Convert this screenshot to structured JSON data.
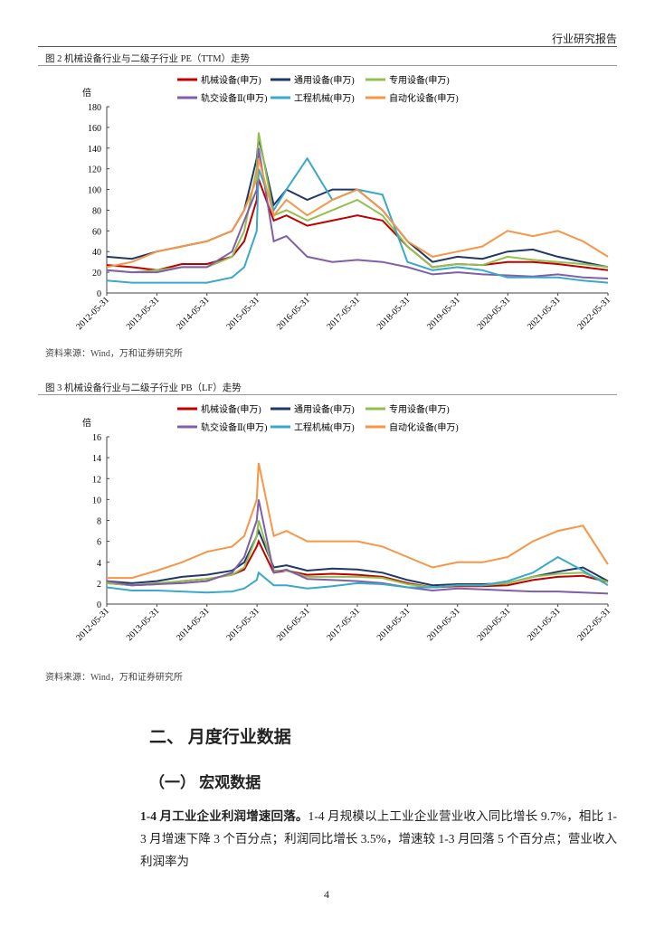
{
  "header": {
    "title": "行业研究报告"
  },
  "figures": [
    {
      "caption": "图 2  机械设备行业与二级子行业 PE（TTM）走势",
      "source": "资料来源：Wind，万和证券研究所"
    },
    {
      "caption": "图 3  机械设备行业与二级子行业 PB（LF）走势",
      "source": "资料来源：Wind，万和证券研究所"
    }
  ],
  "chart_data": [
    {
      "type": "line",
      "y_label": "倍",
      "x": [
        "2012-05-31",
        "2012-11-30",
        "2013-05-31",
        "2013-11-30",
        "2014-05-31",
        "2014-11-30",
        "2015-02-27",
        "2015-05-29",
        "2015-06-12",
        "2015-09-30",
        "2015-12-31",
        "2016-05-31",
        "2016-11-30",
        "2017-05-31",
        "2017-11-30",
        "2018-05-31",
        "2018-11-30",
        "2019-05-31",
        "2019-11-29",
        "2020-05-29",
        "2020-11-30",
        "2021-05-31",
        "2021-11-30",
        "2022-05-31"
      ],
      "xlim": [
        "2012-05-31",
        "2022-05-31"
      ],
      "xticks": [
        "2012-05-31",
        "2013-05-31",
        "2014-05-31",
        "2015-05-31",
        "2016-05-31",
        "2017-05-31",
        "2018-05-31",
        "2019-05-31",
        "2020-05-31",
        "2021-05-31",
        "2022-05-31"
      ],
      "ylim": [
        0,
        180
      ],
      "yticks": [
        0,
        20,
        40,
        60,
        80,
        100,
        120,
        140,
        160,
        180
      ],
      "series": [
        {
          "name": "机械设备(申万)",
          "color": "#c00000",
          "values": [
            27,
            25,
            22,
            28,
            28,
            35,
            50,
            90,
            110,
            70,
            75,
            65,
            70,
            75,
            70,
            45,
            25,
            28,
            27,
            30,
            30,
            28,
            25,
            22
          ]
        },
        {
          "name": "通用设备(申万)",
          "color": "#203864",
          "values": [
            35,
            33,
            40,
            45,
            50,
            60,
            80,
            130,
            150,
            85,
            100,
            90,
            100,
            100,
            80,
            50,
            30,
            35,
            33,
            40,
            42,
            35,
            30,
            25
          ]
        },
        {
          "name": "专用设备(申万)",
          "color": "#92c050",
          "values": [
            22,
            20,
            22,
            25,
            25,
            35,
            60,
            120,
            155,
            75,
            80,
            70,
            80,
            90,
            75,
            45,
            25,
            28,
            27,
            35,
            32,
            30,
            28,
            25
          ]
        },
        {
          "name": "轨交设备Ⅱ(申万)",
          "color": "#7f5fa8",
          "values": [
            22,
            20,
            20,
            25,
            25,
            40,
            70,
            100,
            140,
            50,
            55,
            35,
            30,
            32,
            30,
            25,
            18,
            20,
            18,
            17,
            16,
            18,
            15,
            14
          ]
        },
        {
          "name": "工程机械(申万)",
          "color": "#3aa8c8",
          "values": [
            12,
            10,
            10,
            10,
            10,
            15,
            25,
            60,
            120,
            80,
            100,
            130,
            90,
            100,
            95,
            30,
            22,
            25,
            22,
            15,
            15,
            15,
            12,
            10
          ]
        },
        {
          "name": "自动化设备(申万)",
          "color": "#f79646",
          "values": [
            25,
            30,
            40,
            45,
            50,
            60,
            80,
            110,
            130,
            75,
            90,
            75,
            90,
            100,
            80,
            50,
            35,
            40,
            45,
            60,
            55,
            60,
            50,
            35
          ]
        }
      ]
    },
    {
      "type": "line",
      "y_label": "倍",
      "x": [
        "2012-05-31",
        "2012-11-30",
        "2013-05-31",
        "2013-11-30",
        "2014-05-31",
        "2014-11-30",
        "2015-02-27",
        "2015-05-29",
        "2015-06-12",
        "2015-09-30",
        "2015-12-31",
        "2016-05-31",
        "2016-11-30",
        "2017-05-31",
        "2017-11-30",
        "2018-05-31",
        "2018-11-30",
        "2019-05-31",
        "2019-11-29",
        "2020-05-29",
        "2020-11-30",
        "2021-05-31",
        "2021-11-30",
        "2022-05-31"
      ],
      "xlim": [
        "2012-05-31",
        "2022-05-31"
      ],
      "xticks": [
        "2012-05-31",
        "2013-05-31",
        "2014-05-31",
        "2015-05-31",
        "2016-05-31",
        "2017-05-31",
        "2018-05-31",
        "2019-05-31",
        "2020-05-31",
        "2021-05-31",
        "2022-05-31"
      ],
      "ylim": [
        0,
        16
      ],
      "yticks": [
        0,
        2,
        4,
        6,
        8,
        10,
        12,
        14,
        16
      ],
      "series": [
        {
          "name": "机械设备(申万)",
          "color": "#c00000",
          "values": [
            2.0,
            1.8,
            1.9,
            2.2,
            2.4,
            2.8,
            3.3,
            5.5,
            6.0,
            3.0,
            3.2,
            2.8,
            2.9,
            2.8,
            2.6,
            2.0,
            1.6,
            1.7,
            1.7,
            1.8,
            2.3,
            2.6,
            2.7,
            2.1
          ]
        },
        {
          "name": "通用设备(申万)",
          "color": "#203864",
          "values": [
            2.2,
            2.0,
            2.2,
            2.6,
            2.8,
            3.2,
            4.0,
            6.5,
            7.0,
            3.5,
            3.7,
            3.2,
            3.4,
            3.3,
            3.0,
            2.3,
            1.8,
            1.9,
            1.9,
            2.0,
            2.6,
            3.1,
            3.5,
            2.2
          ]
        },
        {
          "name": "专用设备(申万)",
          "color": "#92c050",
          "values": [
            2.0,
            1.8,
            2.0,
            2.2,
            2.4,
            2.8,
            3.5,
            6.5,
            8.0,
            3.2,
            3.2,
            2.6,
            2.6,
            2.6,
            2.5,
            1.9,
            1.6,
            1.8,
            1.8,
            2.0,
            2.6,
            2.9,
            3.0,
            2.1
          ]
        },
        {
          "name": "轨交设备Ⅱ(申万)",
          "color": "#7f5fa8",
          "values": [
            2.2,
            1.8,
            1.9,
            2.0,
            2.2,
            3.0,
            4.5,
            8.0,
            10.0,
            3.0,
            3.3,
            2.4,
            2.3,
            2.2,
            2.0,
            1.6,
            1.3,
            1.5,
            1.4,
            1.3,
            1.2,
            1.2,
            1.1,
            1.0
          ]
        },
        {
          "name": "工程机械(申万)",
          "color": "#3aa8c8",
          "values": [
            1.6,
            1.3,
            1.3,
            1.2,
            1.1,
            1.2,
            1.5,
            2.3,
            3.0,
            1.8,
            1.8,
            1.5,
            1.7,
            2.0,
            1.9,
            1.6,
            1.6,
            1.8,
            1.8,
            2.2,
            3.0,
            4.5,
            3.2,
            1.8
          ]
        },
        {
          "name": "自动化设备(申万)",
          "color": "#f79646",
          "values": [
            2.5,
            2.5,
            3.2,
            4.0,
            5.0,
            5.5,
            6.5,
            10.0,
            13.5,
            6.5,
            7.0,
            6.0,
            6.0,
            6.0,
            5.5,
            4.5,
            3.5,
            4.0,
            4.0,
            4.5,
            6.0,
            7.0,
            7.5,
            3.8
          ]
        }
      ]
    }
  ],
  "section": {
    "title": "二、 月度行业数据",
    "subtitle": "（一） 宏观数据"
  },
  "paragraph": {
    "lead": "1-4 月工业企业利润增速回落。",
    "text": "1-4 月规模以上工业企业营业收入同比增长 9.7%，相比 1-3 月增速下降 3 个百分点；利润同比增长 3.5%，增速较 1-3 月回落 5 个百分点；营业收入利润率为"
  },
  "page_number": "4"
}
